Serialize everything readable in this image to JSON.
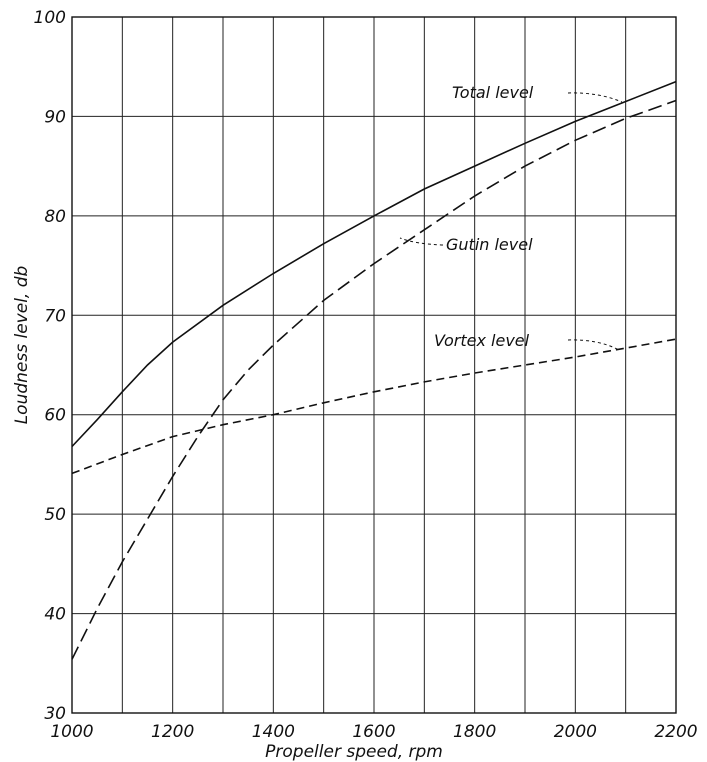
{
  "chart_data": {
    "type": "line",
    "title": "",
    "xlabel": "Propeller speed, rpm",
    "ylabel": "Loudness level, db",
    "xlim": [
      1000,
      2200
    ],
    "ylim": [
      30,
      100
    ],
    "x_ticks": [
      1000,
      1200,
      1400,
      1600,
      1800,
      2000,
      2200
    ],
    "y_ticks": [
      30,
      40,
      50,
      60,
      70,
      80,
      90,
      100
    ],
    "grid": true,
    "series": [
      {
        "name": "Total level",
        "style": "solid",
        "points": [
          [
            1000,
            56.8
          ],
          [
            1050,
            59.5
          ],
          [
            1100,
            62.3
          ],
          [
            1150,
            65.0
          ],
          [
            1200,
            67.3
          ],
          [
            1300,
            71.0
          ],
          [
            1400,
            74.2
          ],
          [
            1500,
            77.2
          ],
          [
            1600,
            80.0
          ],
          [
            1700,
            82.7
          ],
          [
            1800,
            85.0
          ],
          [
            1900,
            87.3
          ],
          [
            2000,
            89.5
          ],
          [
            2100,
            91.5
          ],
          [
            2200,
            93.5
          ]
        ]
      },
      {
        "name": "Gutin level",
        "style": "long-dash",
        "points": [
          [
            1000,
            35.4
          ],
          [
            1050,
            40.5
          ],
          [
            1100,
            45.2
          ],
          [
            1150,
            49.5
          ],
          [
            1200,
            53.8
          ],
          [
            1250,
            57.8
          ],
          [
            1300,
            61.5
          ],
          [
            1350,
            64.5
          ],
          [
            1400,
            67.0
          ],
          [
            1500,
            71.5
          ],
          [
            1600,
            75.2
          ],
          [
            1700,
            78.6
          ],
          [
            1800,
            82.0
          ],
          [
            1900,
            85.0
          ],
          [
            2000,
            87.6
          ],
          [
            2100,
            89.8
          ],
          [
            2200,
            91.6
          ]
        ]
      },
      {
        "name": "Vortex level",
        "style": "short-dash",
        "points": [
          [
            1000,
            54.1
          ],
          [
            1100,
            56.0
          ],
          [
            1200,
            57.8
          ],
          [
            1300,
            59.0
          ],
          [
            1400,
            60.0
          ],
          [
            1500,
            61.2
          ],
          [
            1600,
            62.3
          ],
          [
            1700,
            63.3
          ],
          [
            1800,
            64.2
          ],
          [
            1900,
            65.0
          ],
          [
            2000,
            65.8
          ],
          [
            2100,
            66.7
          ],
          [
            2200,
            67.6
          ]
        ]
      }
    ],
    "annotations": [
      {
        "text": "Total level",
        "series": "Total level"
      },
      {
        "text": "Gutin level",
        "series": "Gutin level"
      },
      {
        "text": "Vortex level",
        "series": "Vortex level"
      }
    ]
  }
}
